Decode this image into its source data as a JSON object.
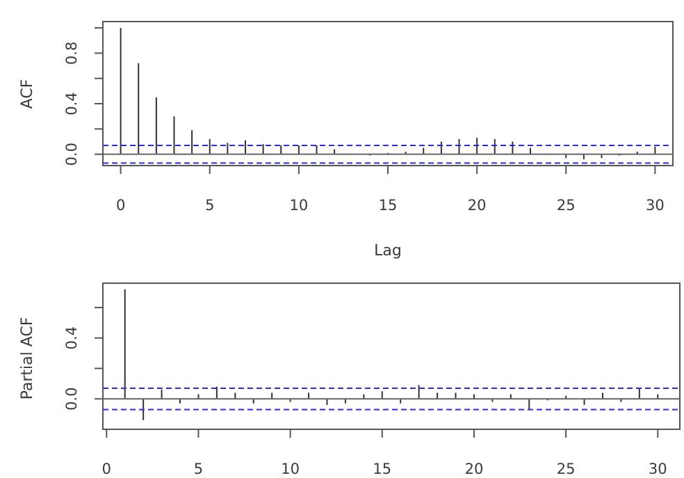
{
  "chart_data": [
    {
      "id": "acf",
      "type": "bar",
      "title": "",
      "xlabel": "Lag",
      "ylabel": "ACF",
      "xlim": [
        -1,
        31
      ],
      "ylim": [
        -0.09,
        1.05
      ],
      "xticks": [
        0,
        5,
        10,
        15,
        20,
        25,
        30
      ],
      "xtick_labels": [
        "0",
        "5",
        "10",
        "15",
        "20",
        "25",
        "30"
      ],
      "yticks": [
        0.0,
        0.4,
        0.8
      ],
      "ytick_labels": [
        "0.0",
        "0.4",
        "0.8"
      ],
      "grid": false,
      "confidence_band": 0.07,
      "series": [
        {
          "lags": [
            0,
            1,
            2,
            3,
            4,
            5,
            6,
            7,
            8,
            9,
            10,
            11,
            12,
            13,
            14,
            15,
            16,
            17,
            18,
            19,
            20,
            21,
            22,
            23,
            24,
            25,
            26,
            27,
            28,
            29,
            30
          ],
          "values": [
            1.0,
            0.72,
            0.45,
            0.3,
            0.19,
            0.12,
            0.09,
            0.11,
            0.08,
            0.07,
            0.07,
            0.07,
            0.04,
            0.0,
            -0.01,
            0.01,
            0.02,
            0.05,
            0.1,
            0.12,
            0.13,
            0.12,
            0.1,
            0.05,
            0.0,
            -0.03,
            -0.04,
            -0.03,
            -0.01,
            0.02,
            0.06
          ]
        }
      ]
    },
    {
      "id": "pacf",
      "type": "bar",
      "title": "",
      "xlabel": "",
      "ylabel": "Partial ACF",
      "xlim": [
        -0.2,
        31.2
      ],
      "ylim": [
        -0.2,
        0.76
      ],
      "xticks": [
        0,
        5,
        10,
        15,
        20,
        25,
        30
      ],
      "xtick_labels": [
        "0",
        "5",
        "10",
        "15",
        "20",
        "25",
        "30"
      ],
      "yticks": [
        0.0,
        0.4
      ],
      "ytick_labels": [
        "0.0",
        "0.4"
      ],
      "grid": false,
      "confidence_band": 0.07,
      "series": [
        {
          "lags": [
            1,
            2,
            3,
            4,
            5,
            6,
            7,
            8,
            9,
            10,
            11,
            12,
            13,
            14,
            15,
            16,
            17,
            18,
            19,
            20,
            21,
            22,
            23,
            24,
            25,
            26,
            27,
            28,
            29,
            30
          ],
          "values": [
            0.72,
            -0.14,
            0.06,
            -0.03,
            0.03,
            0.08,
            0.04,
            -0.03,
            0.04,
            -0.02,
            0.04,
            -0.04,
            -0.03,
            0.03,
            0.05,
            -0.03,
            0.09,
            0.04,
            0.04,
            0.03,
            -0.02,
            0.03,
            -0.07,
            -0.01,
            0.02,
            -0.04,
            0.04,
            -0.02,
            0.07,
            0.03
          ]
        }
      ]
    }
  ]
}
